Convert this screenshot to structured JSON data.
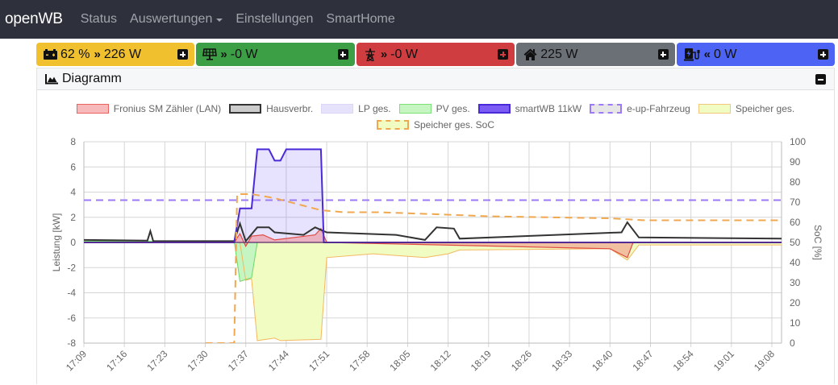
{
  "navbar": {
    "brand": "openWB",
    "items": [
      {
        "label": "Status"
      },
      {
        "label": "Auswertungen",
        "dropdown": true
      },
      {
        "label": "Einstellungen"
      },
      {
        "label": "SmartHome"
      }
    ]
  },
  "tiles": [
    {
      "name": "battery",
      "icon": "battery-icon",
      "soc": "62 %",
      "arrow": "»",
      "value": "226 W",
      "color": "#f0c02e",
      "plus_color": "#ffffff"
    },
    {
      "name": "pv",
      "icon": "solar-panel-icon",
      "arrow": "»",
      "value": "-0 W",
      "color": "#3c9e45",
      "plus_color": "#ffffff"
    },
    {
      "name": "grid",
      "icon": "power-tower-icon",
      "arrow": "»",
      "value": "-0 W",
      "color": "#cf3d40",
      "plus_color": "#cf3d40"
    },
    {
      "name": "house",
      "icon": "home-icon",
      "arrow": "",
      "value": "225 W",
      "color": "#6b7077",
      "plus_color": "#ffffff"
    },
    {
      "name": "chargepoint",
      "icon": "charging-station-icon",
      "arrow": "«",
      "value": "0 W",
      "color": "#4c63f3",
      "plus_color": "#ffffff"
    }
  ],
  "card": {
    "title": "Diagramm"
  },
  "chart_data": {
    "type": "line",
    "title": "",
    "xlabel": "",
    "ylabel": "Leistung [kW]",
    "y2label": "SoC [%]",
    "ylim": [
      -8,
      8
    ],
    "y2lim": [
      0,
      100
    ],
    "yticks": [
      8,
      6,
      4,
      2,
      0,
      -2,
      -4,
      -6,
      -8
    ],
    "y2ticks": [
      100,
      90,
      80,
      70,
      60,
      50,
      40,
      30,
      20,
      10,
      0
    ],
    "x_tick_labels": [
      "17:09",
      "17:16",
      "17:23",
      "17:30",
      "17:37",
      "17:44",
      "17:51",
      "17:58",
      "18:05",
      "18:12",
      "18:19",
      "18:26",
      "18:33",
      "18:40",
      "18:47",
      "18:54",
      "19:01",
      "19:08"
    ],
    "grid": true,
    "legend_position": "top",
    "legend": [
      {
        "label": "Fronius SM Zähler (LAN)",
        "fill": "#f7b9b9",
        "stroke": "#e8625f",
        "dash": false
      },
      {
        "label": "Hausverbr.",
        "fill": "#cccccc",
        "stroke": "#333333",
        "dash": false
      },
      {
        "label": "LP ges.",
        "fill": "#e6e2fb",
        "stroke": "#dcd6f7",
        "dash": false
      },
      {
        "label": "PV ges.",
        "fill": "#c5f5c0",
        "stroke": "#7ee07a",
        "dash": false
      },
      {
        "label": "smartWB 11kW",
        "fill": "#7b5cf5",
        "stroke": "#4a2ad8",
        "dash": false
      },
      {
        "label": "e-up-Fahrzeug",
        "fill": "#e6e6e6",
        "stroke": "#9d7af5",
        "dash": true
      },
      {
        "label": "Speicher ges.",
        "fill": "#f0fcc2",
        "stroke": "#f4c77f",
        "dash": false
      },
      {
        "label": "Speicher ges. SoC",
        "fill": "#f0fcc2",
        "stroke": "#f0a850",
        "dash": true
      }
    ],
    "series": [
      {
        "name": "smartWB 11kW",
        "unit": "kW",
        "points": [
          [
            "17:09",
            0
          ],
          [
            "17:35",
            0
          ],
          [
            "17:36",
            2.7
          ],
          [
            "17:38",
            2.7
          ],
          [
            "17:39",
            7.4
          ],
          [
            "17:41",
            7.4
          ],
          [
            "17:42",
            6.5
          ],
          [
            "17:43",
            6.5
          ],
          [
            "17:44",
            7.4
          ],
          [
            "17:50",
            7.4
          ],
          [
            "17:50.5",
            0
          ],
          [
            "19:10",
            0
          ]
        ]
      },
      {
        "name": "Hausverbr.",
        "unit": "kW",
        "points": [
          [
            "17:09",
            0.2
          ],
          [
            "17:20",
            0.15
          ],
          [
            "17:20.5",
            0.9
          ],
          [
            "17:21",
            0.1
          ],
          [
            "17:35",
            0.1
          ],
          [
            "17:36",
            1.5
          ],
          [
            "17:37",
            0.1
          ],
          [
            "17:39",
            1.2
          ],
          [
            "17:41",
            1.2
          ],
          [
            "17:42",
            0.8
          ],
          [
            "17:47",
            0.6
          ],
          [
            "17:49",
            1.2
          ],
          [
            "17:51",
            0.8
          ],
          [
            "18:03",
            0.6
          ],
          [
            "18:08",
            0.2
          ],
          [
            "18:10",
            1.2
          ],
          [
            "18:13",
            1.1
          ],
          [
            "18:14",
            0.3
          ],
          [
            "18:42",
            0.8
          ],
          [
            "18:43",
            1.6
          ],
          [
            "18:45",
            0.4
          ],
          [
            "19:10",
            0.3
          ]
        ]
      },
      {
        "name": "Fronius SM Zähler (LAN)",
        "unit": "kW",
        "points": [
          [
            "17:09",
            0
          ],
          [
            "17:35",
            0
          ],
          [
            "17:36",
            0.7
          ],
          [
            "17:37",
            -0.3
          ],
          [
            "17:38",
            0.5
          ],
          [
            "17:40",
            0.6
          ],
          [
            "17:42",
            0.2
          ],
          [
            "17:49",
            0.6
          ],
          [
            "17:50",
            1.1
          ],
          [
            "17:51",
            0
          ],
          [
            "18:40",
            -0.5
          ],
          [
            "18:43",
            -1.2
          ],
          [
            "18:44",
            0
          ],
          [
            "19:10",
            0
          ]
        ]
      },
      {
        "name": "PV ges.",
        "unit": "kW",
        "points": [
          [
            "17:09",
            0.1
          ],
          [
            "17:35",
            0.1
          ],
          [
            "17:36",
            -3.1
          ],
          [
            "17:38",
            -2.8
          ],
          [
            "17:39",
            0
          ],
          [
            "19:10",
            0
          ]
        ]
      },
      {
        "name": "Speicher ges.",
        "unit": "kW",
        "points": [
          [
            "17:09",
            0
          ],
          [
            "17:36",
            0
          ],
          [
            "17:37",
            -3.0
          ],
          [
            "17:38",
            -2.9
          ],
          [
            "17:39",
            -7.8
          ],
          [
            "17:42",
            -7.6
          ],
          [
            "17:43",
            -7.8
          ],
          [
            "17:50",
            -7.7
          ],
          [
            "17:51",
            -1.2
          ],
          [
            "17:59",
            -0.9
          ],
          [
            "18:08",
            -1.2
          ],
          [
            "18:12",
            -0.9
          ],
          [
            "18:14",
            -0.6
          ],
          [
            "18:40",
            -0.5
          ],
          [
            "18:43",
            -1.4
          ],
          [
            "18:45",
            -0.2
          ],
          [
            "19:10",
            -0.2
          ]
        ]
      },
      {
        "name": "e-up-Fahrzeug",
        "unit": "%",
        "points": [
          [
            "17:09",
            71
          ],
          [
            "19:10",
            71
          ]
        ]
      },
      {
        "name": "Speicher ges. SoC",
        "unit": "%",
        "points": [
          [
            "17:30",
            0
          ],
          [
            "17:35",
            0
          ],
          [
            "17:35.5",
            74
          ],
          [
            "17:38",
            74
          ],
          [
            "17:42",
            72
          ],
          [
            "17:46",
            69
          ],
          [
            "17:50",
            66
          ],
          [
            "17:54",
            65
          ],
          [
            "18:00",
            65
          ],
          [
            "18:10",
            64
          ],
          [
            "18:19",
            63
          ],
          [
            "18:40",
            62
          ],
          [
            "18:46",
            61
          ],
          [
            "19:10",
            61
          ]
        ]
      }
    ]
  }
}
